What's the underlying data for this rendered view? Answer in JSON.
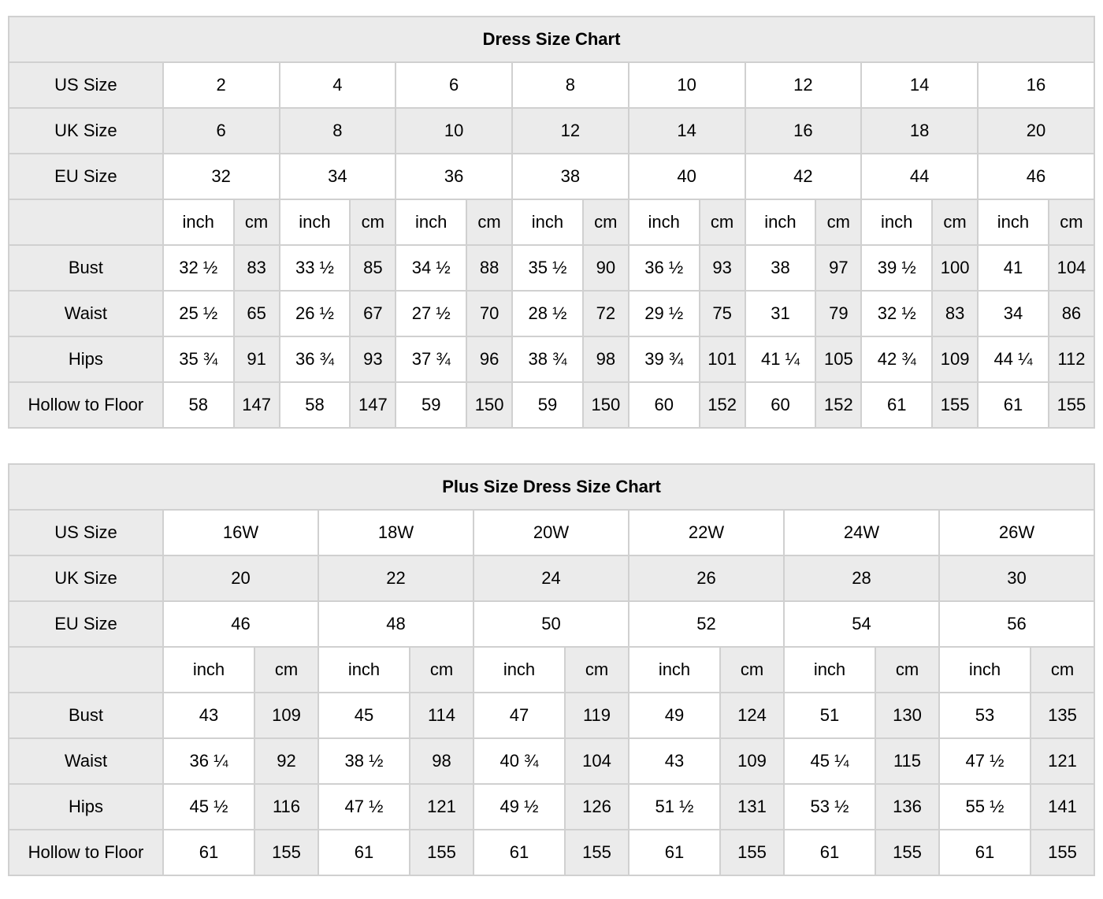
{
  "colors": {
    "shaded_cell": "#ebebeb",
    "white_cell": "#ffffff",
    "border": "#d0d0d0",
    "text": "#000000"
  },
  "chart_data": [
    {
      "type": "table",
      "title": "Dress Size Chart",
      "size_rows": [
        {
          "label": "US Size",
          "shaded": false,
          "values": [
            "2",
            "4",
            "6",
            "8",
            "10",
            "12",
            "14",
            "16"
          ]
        },
        {
          "label": "UK Size",
          "shaded": true,
          "values": [
            "6",
            "8",
            "10",
            "12",
            "14",
            "16",
            "18",
            "20"
          ]
        },
        {
          "label": "EU Size",
          "shaded": false,
          "values": [
            "32",
            "34",
            "36",
            "38",
            "40",
            "42",
            "44",
            "46"
          ]
        }
      ],
      "unit_header": {
        "label": "",
        "inch": "inch",
        "cm": "cm"
      },
      "measure_rows": [
        {
          "label": "Bust",
          "pairs": [
            [
              "32 ½",
              "83"
            ],
            [
              "33 ½",
              "85"
            ],
            [
              "34 ½",
              "88"
            ],
            [
              "35 ½",
              "90"
            ],
            [
              "36 ½",
              "93"
            ],
            [
              "38",
              "97"
            ],
            [
              "39 ½",
              "100"
            ],
            [
              "41",
              "104"
            ]
          ]
        },
        {
          "label": "Waist",
          "pairs": [
            [
              "25 ½",
              "65"
            ],
            [
              "26 ½",
              "67"
            ],
            [
              "27 ½",
              "70"
            ],
            [
              "28 ½",
              "72"
            ],
            [
              "29 ½",
              "75"
            ],
            [
              "31",
              "79"
            ],
            [
              "32 ½",
              "83"
            ],
            [
              "34",
              "86"
            ]
          ]
        },
        {
          "label": "Hips",
          "pairs": [
            [
              "35 ¾",
              "91"
            ],
            [
              "36 ¾",
              "93"
            ],
            [
              "37 ¾",
              "96"
            ],
            [
              "38 ¾",
              "98"
            ],
            [
              "39 ¾",
              "101"
            ],
            [
              "41 ¼",
              "105"
            ],
            [
              "42 ¾",
              "109"
            ],
            [
              "44 ¼",
              "112"
            ]
          ]
        },
        {
          "label": "Hollow to Floor",
          "pairs": [
            [
              "58",
              "147"
            ],
            [
              "58",
              "147"
            ],
            [
              "59",
              "150"
            ],
            [
              "59",
              "150"
            ],
            [
              "60",
              "152"
            ],
            [
              "60",
              "152"
            ],
            [
              "61",
              "155"
            ],
            [
              "61",
              "155"
            ]
          ]
        }
      ]
    },
    {
      "type": "table",
      "title": "Plus Size Dress Size Chart",
      "size_rows": [
        {
          "label": "US Size",
          "shaded": false,
          "values": [
            "16W",
            "18W",
            "20W",
            "22W",
            "24W",
            "26W"
          ]
        },
        {
          "label": "UK Size",
          "shaded": true,
          "values": [
            "20",
            "22",
            "24",
            "26",
            "28",
            "30"
          ]
        },
        {
          "label": "EU Size",
          "shaded": false,
          "values": [
            "46",
            "48",
            "50",
            "52",
            "54",
            "56"
          ]
        }
      ],
      "unit_header": {
        "label": "",
        "inch": "inch",
        "cm": "cm"
      },
      "measure_rows": [
        {
          "label": "Bust",
          "pairs": [
            [
              "43",
              "109"
            ],
            [
              "45",
              "114"
            ],
            [
              "47",
              "119"
            ],
            [
              "49",
              "124"
            ],
            [
              "51",
              "130"
            ],
            [
              "53",
              "135"
            ]
          ]
        },
        {
          "label": "Waist",
          "pairs": [
            [
              "36 ¼",
              "92"
            ],
            [
              "38 ½",
              "98"
            ],
            [
              "40 ¾",
              "104"
            ],
            [
              "43",
              "109"
            ],
            [
              "45 ¼",
              "115"
            ],
            [
              "47 ½",
              "121"
            ]
          ]
        },
        {
          "label": "Hips",
          "pairs": [
            [
              "45 ½",
              "116"
            ],
            [
              "47 ½",
              "121"
            ],
            [
              "49 ½",
              "126"
            ],
            [
              "51 ½",
              "131"
            ],
            [
              "53 ½",
              "136"
            ],
            [
              "55 ½",
              "141"
            ]
          ]
        },
        {
          "label": "Hollow to Floor",
          "pairs": [
            [
              "61",
              "155"
            ],
            [
              "61",
              "155"
            ],
            [
              "61",
              "155"
            ],
            [
              "61",
              "155"
            ],
            [
              "61",
              "155"
            ],
            [
              "61",
              "155"
            ]
          ]
        }
      ]
    }
  ]
}
